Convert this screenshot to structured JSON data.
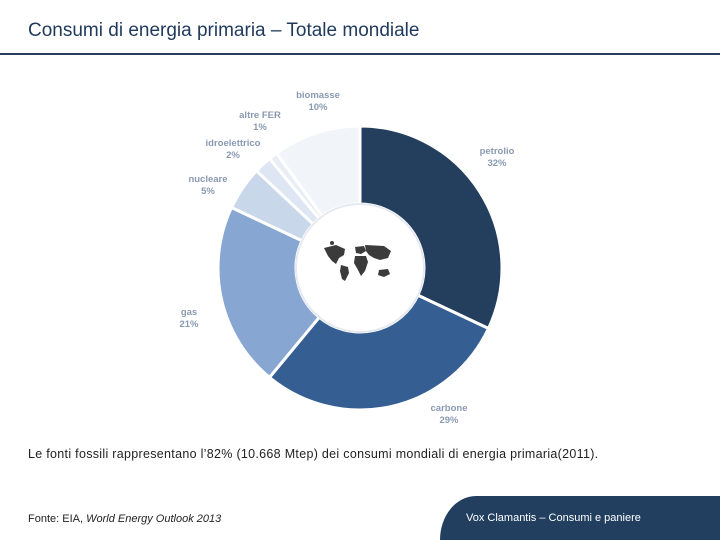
{
  "header": {
    "title": "Consumi di energia primaria – Totale mondiale"
  },
  "chart_data": {
    "type": "pie",
    "variant": "donut",
    "title": "Consumi di energia primaria – Totale mondiale",
    "slices": [
      {
        "label": "petrolio",
        "value": 32,
        "display": "32%",
        "color": "#243f5e"
      },
      {
        "label": "carbone",
        "value": 29,
        "display": "29%",
        "color": "#355f92"
      },
      {
        "label": "gas",
        "value": 21,
        "display": "21%",
        "color": "#87a6d2"
      },
      {
        "label": "nucleare",
        "value": 5,
        "display": "5%",
        "color": "#c9d7ea"
      },
      {
        "label": "idroelettrico",
        "value": 2,
        "display": "2%",
        "color": "#dde6f2"
      },
      {
        "label": "altre FER",
        "value": 1,
        "display": "1%",
        "color": "#e9eef6"
      },
      {
        "label": "biomasse",
        "value": 10,
        "display": "10%",
        "color": "#f1f5fa"
      }
    ],
    "center_icon": "world-map-icon"
  },
  "caption": "Le fonti fossili rappresentano l’82% (10.668 Mtep) dei consumi mondiali di energia primaria(2011).",
  "source": {
    "prefix": "Fonte: EIA, ",
    "italic": "World Energy Outlook 2013"
  },
  "footer": {
    "text": "Vox Clamantis – Consumi e paniere"
  }
}
